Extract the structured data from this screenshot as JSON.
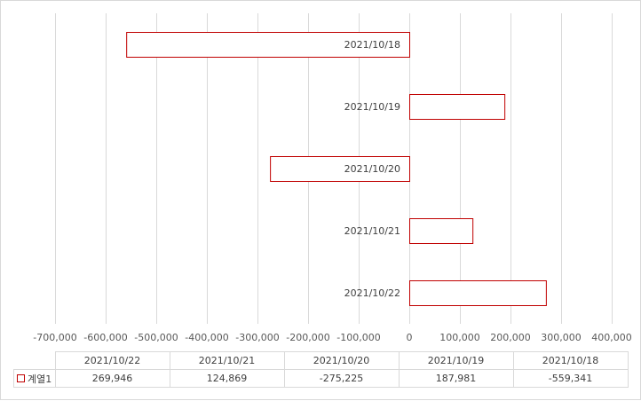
{
  "chart_data": {
    "type": "bar",
    "orientation": "horizontal",
    "categories": [
      "2021/10/18",
      "2021/10/19",
      "2021/10/20",
      "2021/10/21",
      "2021/10/22"
    ],
    "series": [
      {
        "name": "계열1",
        "values": [
          -559341,
          187981,
          -275225,
          124869,
          269946
        ]
      }
    ],
    "xlim": [
      -700000,
      400000
    ],
    "x_ticks": [
      -700000,
      -600000,
      -500000,
      -400000,
      -300000,
      -200000,
      -100000,
      0,
      100000,
      200000,
      300000,
      400000
    ],
    "x_tick_labels": [
      "-700,000",
      "-600,000",
      "-500,000",
      "-400,000",
      "-300,000",
      "-200,000",
      "-100,000",
      "0",
      "100,000",
      "200,000",
      "300,000",
      "400,000"
    ],
    "grid": true,
    "bar_color": "#c00000",
    "bar_fill": "#ffffff",
    "title": "",
    "xlabel": "",
    "ylabel": "",
    "data_table": {
      "headers": [
        "2021/10/22",
        "2021/10/21",
        "2021/10/20",
        "2021/10/19",
        "2021/10/18"
      ],
      "series_name": "계열1",
      "values": [
        "269,946",
        "124,869",
        "-275,225",
        "187,981",
        "-559,341"
      ]
    }
  }
}
